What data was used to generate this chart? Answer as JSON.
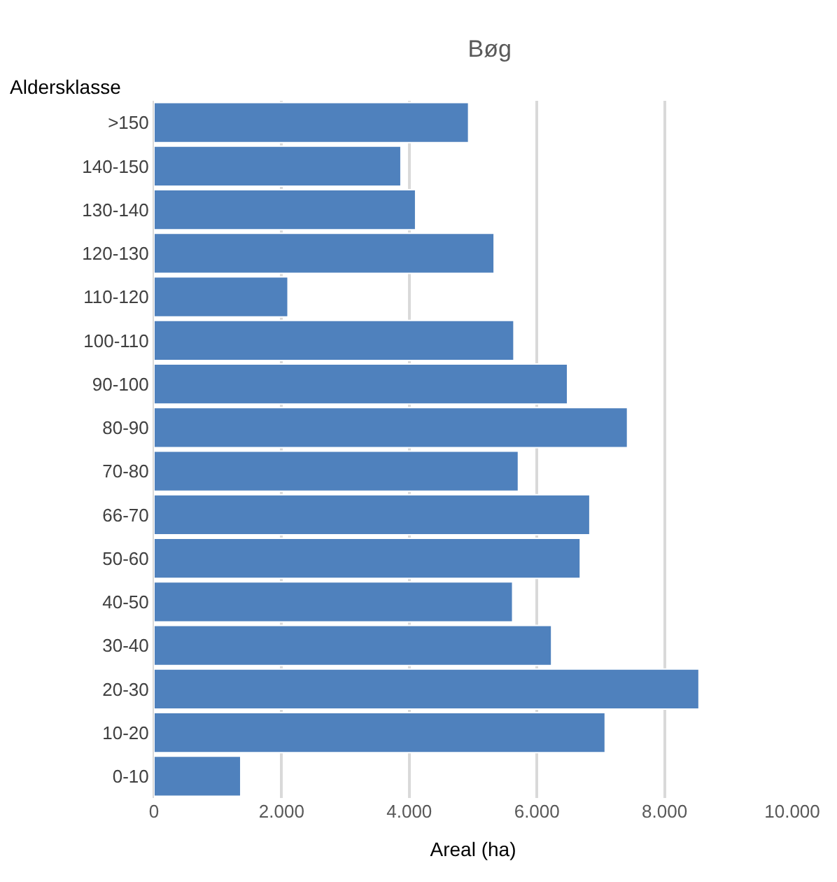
{
  "chart_data": {
    "type": "bar",
    "orientation": "horizontal",
    "title": "Bøg",
    "ylabel": "Aldersklasse",
    "xlabel": "Areal (ha)",
    "categories": [
      ">150",
      "140-150",
      "130-140",
      "120-130",
      "110-120",
      "100-110",
      "90-100",
      "80-90",
      "70-80",
      "66-70",
      "50-60",
      "40-50",
      "30-40",
      "20-30",
      "10-20",
      "0-10"
    ],
    "values": [
      4930,
      3870,
      4100,
      5330,
      2100,
      5640,
      6480,
      7420,
      5710,
      6830,
      6680,
      5620,
      6230,
      8540,
      7070,
      1360
    ],
    "color": "#4f81bd",
    "xlim": [
      0,
      10000
    ],
    "xticks": [
      0,
      {
        "value": 2000,
        "label": "2.000"
      },
      {
        "value": 4000,
        "label": "4.000"
      },
      {
        "value": 6000,
        "label": "6.000"
      },
      {
        "value": 8000,
        "label": "8.000"
      },
      {
        "value": 10000,
        "label": "10.000"
      }
    ],
    "grid": "x",
    "legend": false
  }
}
